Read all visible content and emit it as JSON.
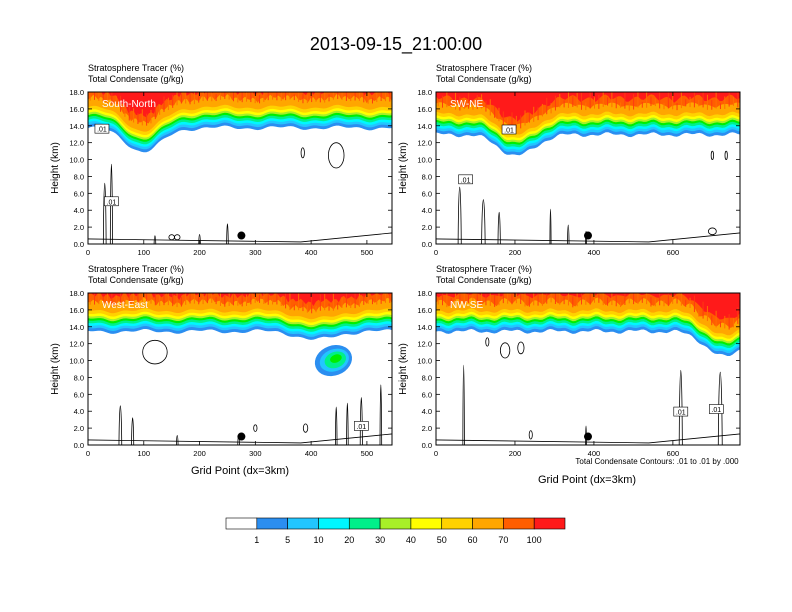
{
  "page_title": "2013-09-15_21:00:00",
  "footnote": "Total Condensate Contours: .01 to .01 by .000",
  "xlabel": "Grid Point (dx=3km)",
  "colorbar": {
    "boundaries": [
      "1",
      "5",
      "10",
      "20",
      "30",
      "40",
      "50",
      "60",
      "70",
      "100"
    ],
    "colors": [
      "#ffffff",
      "#2b8ef0",
      "#22c6ff",
      "#00f7ff",
      "#00f08a",
      "#00ee00",
      "#a8f028",
      "#ffff00",
      "#ffd200",
      "#ffa600",
      "#ff5e00",
      "#ff1a1a"
    ]
  },
  "chart_data": [
    {
      "type": "contour",
      "panel": "South-North",
      "title_line1": "Stratosphere Tracer   (%)",
      "title_line2": "Total Condensate   (g/kg)",
      "ylabel": "Height (km)",
      "ylim": [
        0,
        18
      ],
      "yticks": [
        "0.0",
        "2.0",
        "4.0",
        "6.0",
        "8.0",
        "10.0",
        "12.0",
        "14.0",
        "16.0",
        "18.0"
      ],
      "xlim": [
        0,
        545
      ],
      "xticks": [
        "0",
        "100",
        "200",
        "300",
        "400",
        "500"
      ],
      "tracer_top_km": 14.3,
      "tracer_dip": {
        "x": 100,
        "bottom_km": 11.5
      },
      "contour_label": ".01",
      "contour_labels_at": [
        [
          25,
          13.6
        ],
        [
          42,
          5
        ]
      ],
      "marker": {
        "x": 275,
        "y_km": 1.0
      }
    },
    {
      "type": "contour",
      "panel": "SW-NE",
      "title_line1": "Stratosphere Tracer   (%)",
      "title_line2": "Total Condensate   (g/kg)",
      "ylabel": "Height (km)",
      "ylim": [
        0,
        18
      ],
      "yticks": [
        "0.0",
        "2.0",
        "4.0",
        "6.0",
        "8.0",
        "10.0",
        "12.0",
        "14.0",
        "16.0",
        "18.0"
      ],
      "xlim": [
        0,
        770
      ],
      "xticks": [
        "0",
        "200",
        "400",
        "600"
      ],
      "tracer_top_km": 13.5,
      "tracer_dip": {
        "x": 205,
        "bottom_km": 11.0
      },
      "contour_label": ".01",
      "contour_labels_at": [
        [
          75,
          7.6
        ],
        [
          185,
          13.5
        ]
      ],
      "marker": {
        "x": 385,
        "y_km": 1.0
      }
    },
    {
      "type": "contour",
      "panel": "West-East",
      "title_line1": "Stratosphere Tracer   (%)",
      "title_line2": "Total Condensate   (g/kg)",
      "ylabel": "Height (km)",
      "ylim": [
        0,
        18
      ],
      "yticks": [
        "0.0",
        "2.0",
        "4.0",
        "6.0",
        "8.0",
        "10.0",
        "12.0",
        "14.0",
        "16.0",
        "18.0"
      ],
      "xlim": [
        0,
        545
      ],
      "xticks": [
        "0",
        "100",
        "200",
        "300",
        "400",
        "500"
      ],
      "tracer_top_km": 14.0,
      "tracer_dip": {
        "x": 410,
        "bottom_km": 13.0
      },
      "tracer_blob": {
        "x": 440,
        "y_km": 10.0
      },
      "contour_label": ".01",
      "contour_labels_at": [
        [
          490,
          2.2
        ]
      ],
      "marker": {
        "x": 275,
        "y_km": 1.0
      }
    },
    {
      "type": "contour",
      "panel": "NW-SE",
      "title_line1": "Stratosphere Tracer   (%)",
      "title_line2": "Total Condensate   (g/kg)",
      "ylabel": "Height (km)",
      "ylim": [
        0,
        18
      ],
      "yticks": [
        "0.0",
        "2.0",
        "4.0",
        "6.0",
        "8.0",
        "10.0",
        "12.0",
        "14.0",
        "16.0",
        "18.0"
      ],
      "xlim": [
        0,
        770
      ],
      "xticks": [
        "0",
        "200",
        "400",
        "600"
      ],
      "tracer_top_km": 14.0,
      "tracer_dip": {
        "x": 730,
        "bottom_km": 11.0
      },
      "contour_label": ".01",
      "contour_labels_at": [
        [
          620,
          3.9
        ],
        [
          710,
          4.2
        ]
      ],
      "marker": {
        "x": 385,
        "y_km": 1.0
      }
    }
  ]
}
